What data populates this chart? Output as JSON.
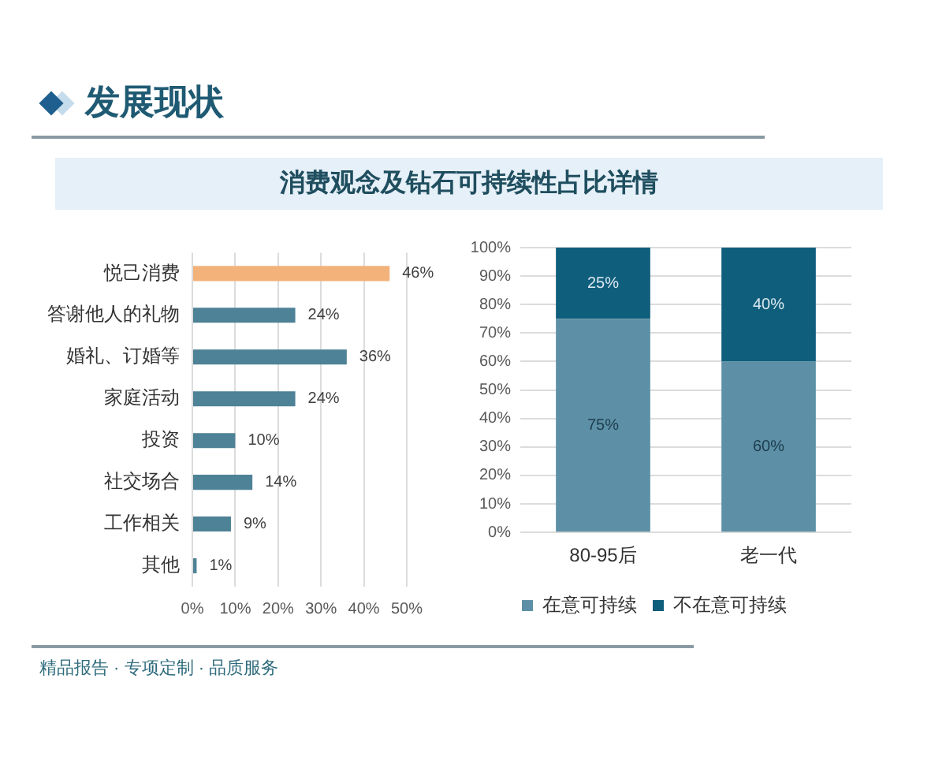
{
  "chart_data": [
    {
      "type": "bar",
      "title": "发展现状",
      "subtitle": "消费观念及钻石可持续性占比详情",
      "orientation": "horizontal",
      "categories": [
        "悦己消费",
        "答谢他人的礼物",
        "婚礼、订婚等",
        "家庭活动",
        "投资",
        "社交场合",
        "工作相关",
        "其他"
      ],
      "values": [
        46,
        24,
        36,
        24,
        10,
        14,
        9,
        1
      ],
      "value_labels": [
        "46%",
        "24%",
        "36%",
        "24%",
        "10%",
        "14%",
        "9%",
        "1%"
      ],
      "colors": [
        "#f2b27a",
        "#4e8296",
        "#4e8296",
        "#4e8296",
        "#4e8296",
        "#4e8296",
        "#4e8296",
        "#4e8296"
      ],
      "xlim": [
        0,
        50
      ],
      "xticks": [
        {
          "value": 0,
          "label": "0%"
        },
        {
          "value": 10,
          "label": "10%"
        },
        {
          "value": 20,
          "label": "20%"
        },
        {
          "value": 30,
          "label": "30%"
        },
        {
          "value": 40,
          "label": "40%"
        },
        {
          "value": 50,
          "label": "50%"
        }
      ],
      "grid": "x",
      "annotations": [
        "精品报告 · 专项定制 · 品质服务"
      ]
    },
    {
      "type": "bar",
      "stacked": true,
      "categories": [
        "80-95后",
        "老一代"
      ],
      "series": [
        {
          "name": "在意可持续",
          "color": "#5d90a6",
          "values": [
            75,
            60
          ],
          "value_labels": [
            "75%",
            "60%"
          ]
        },
        {
          "name": "不在意可持续",
          "color": "#0f5e7c",
          "values": [
            25,
            40
          ],
          "value_labels": [
            "25%",
            "40%"
          ]
        }
      ],
      "ylim": [
        0,
        100
      ],
      "yticks": [
        {
          "value": 0,
          "label": "0%"
        },
        {
          "value": 10,
          "label": "10%"
        },
        {
          "value": 20,
          "label": "20%"
        },
        {
          "value": 30,
          "label": "30%"
        },
        {
          "value": 40,
          "label": "40%"
        },
        {
          "value": 50,
          "label": "50%"
        },
        {
          "value": 60,
          "label": "60%"
        },
        {
          "value": 70,
          "label": "70%"
        },
        {
          "value": 80,
          "label": "80%"
        },
        {
          "value": 90,
          "label": "90%"
        },
        {
          "value": 100,
          "label": "100%"
        }
      ],
      "grid": "y",
      "legend": "bottom"
    }
  ]
}
